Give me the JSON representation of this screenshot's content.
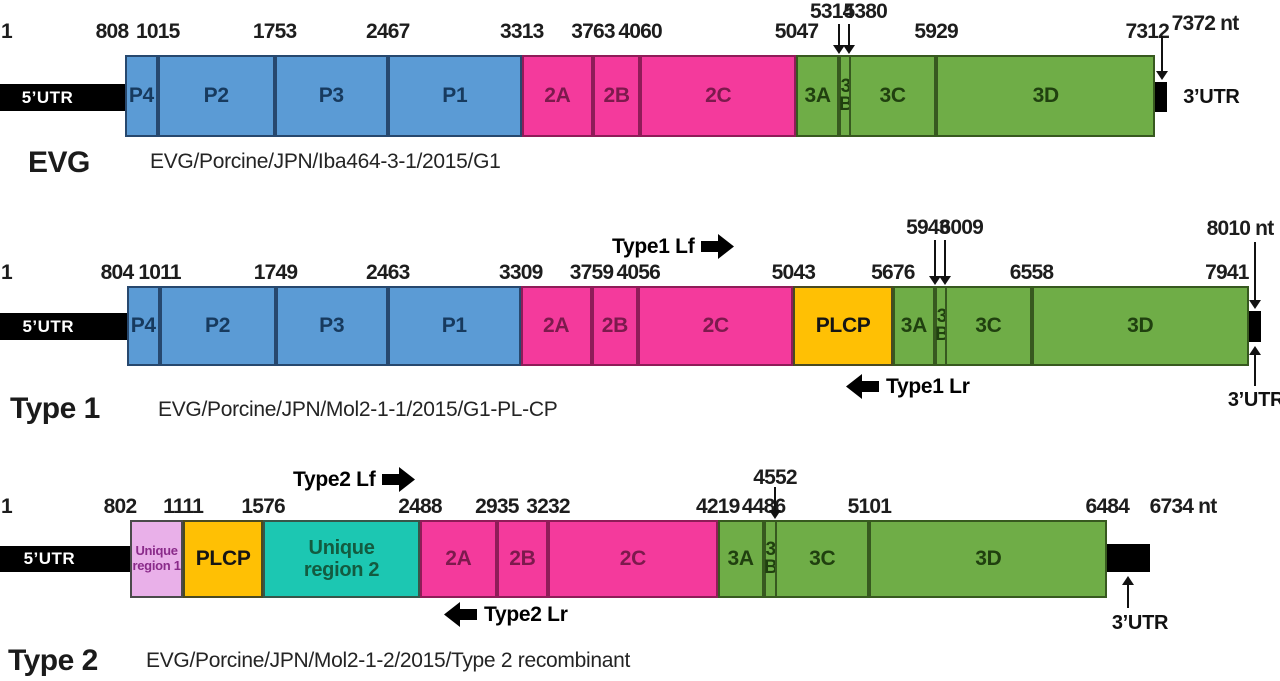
{
  "figure_type": "virus genome organization diagram",
  "palette": {
    "blue": "#5B9BD5",
    "pink": "#F43A9C",
    "green": "#6FAD47",
    "yellow": "#FFC004",
    "lavender": "#E9B0E9",
    "teal": "#1CC7B2",
    "utr_black": "#000000"
  },
  "rows": [
    {
      "name": "EVG",
      "strain": "EVG/Porcine/JPN/Iba464-3-1/2015/G1",
      "start_tick": "1",
      "utr5_label": "5’UTR",
      "utr3_label": "3’UTR",
      "end_label": "7372 nt",
      "ticks": [
        808,
        1015,
        1753,
        2467,
        3313,
        3763,
        4060,
        5047,
        5929,
        7312
      ],
      "pointer_ticks": [
        5314,
        5380
      ],
      "utr3_span": [
        7312,
        7372
      ],
      "segments": [
        {
          "label": "P4",
          "start": 808,
          "end": 1015,
          "color": "blue"
        },
        {
          "label": "P2",
          "start": 1015,
          "end": 1753,
          "color": "blue"
        },
        {
          "label": "P3",
          "start": 1753,
          "end": 2467,
          "color": "blue"
        },
        {
          "label": "P1",
          "start": 2467,
          "end": 3313,
          "color": "blue"
        },
        {
          "label": "2A",
          "start": 3313,
          "end": 3763,
          "color": "pink"
        },
        {
          "label": "2B",
          "start": 3763,
          "end": 4060,
          "color": "pink"
        },
        {
          "label": "2C",
          "start": 4060,
          "end": 5047,
          "color": "pink"
        },
        {
          "label": "3A",
          "start": 5047,
          "end": 5314,
          "color": "green"
        },
        {
          "label": "3B",
          "start": 5314,
          "end": 5380,
          "color": "green",
          "stacked": true
        },
        {
          "label": "3C",
          "start": 5380,
          "end": 5929,
          "color": "green"
        },
        {
          "label": "3D",
          "start": 5929,
          "end": 7312,
          "color": "green"
        }
      ],
      "primers": []
    },
    {
      "name": "Type 1",
      "strain": "EVG/Porcine/JPN/Mol2-1-1/2015/G1-PL-CP",
      "start_tick": "1",
      "utr5_label": "5’UTR",
      "utr3_label": "3’UTR",
      "end_label": "8010 nt",
      "ticks": [
        804,
        1011,
        1749,
        2463,
        3309,
        3759,
        4056,
        5043,
        5676,
        6558,
        7941
      ],
      "pointer_ticks": [
        5943,
        6009
      ],
      "utr3_span": [
        7941,
        8010
      ],
      "segments": [
        {
          "label": "P4",
          "start": 804,
          "end": 1011,
          "color": "blue"
        },
        {
          "label": "P2",
          "start": 1011,
          "end": 1749,
          "color": "blue"
        },
        {
          "label": "P3",
          "start": 1749,
          "end": 2463,
          "color": "blue"
        },
        {
          "label": "P1",
          "start": 2463,
          "end": 3309,
          "color": "blue"
        },
        {
          "label": "2A",
          "start": 3309,
          "end": 3759,
          "color": "pink"
        },
        {
          "label": "2B",
          "start": 3759,
          "end": 4056,
          "color": "pink"
        },
        {
          "label": "2C",
          "start": 4056,
          "end": 5043,
          "color": "pink"
        },
        {
          "label": "PLCP",
          "start": 5043,
          "end": 5676,
          "color": "yellow"
        },
        {
          "label": "3A",
          "start": 5676,
          "end": 5943,
          "color": "green"
        },
        {
          "label": "3B",
          "start": 5943,
          "end": 6009,
          "color": "green",
          "stacked": true
        },
        {
          "label": "3C",
          "start": 6009,
          "end": 6558,
          "color": "green"
        },
        {
          "label": "3D",
          "start": 6558,
          "end": 7941,
          "color": "green"
        }
      ],
      "primers": [
        {
          "label": "Type1 Lf",
          "direction": "right",
          "position": "above"
        },
        {
          "label": "Type1 Lr",
          "direction": "left",
          "position": "below"
        }
      ]
    },
    {
      "name": "Type 2",
      "strain": "EVG/Porcine/JPN/Mol2-1-2/2015/Type 2 recombinant",
      "start_tick": "1",
      "utr5_label": "5’UTR",
      "utr3_label": "3’UTR",
      "end_label": "6734 nt",
      "ticks": [
        802,
        1111,
        1576,
        2488,
        2935,
        3232,
        4219,
        4486,
        5101,
        6484
      ],
      "pointer_ticks": [
        4552
      ],
      "utr3_span": [
        6484,
        6734
      ],
      "segments": [
        {
          "label": "Unique region 1",
          "start": 802,
          "end": 1111,
          "color": "lavender",
          "twoLine": true
        },
        {
          "label": "PLCP",
          "start": 1111,
          "end": 1576,
          "color": "yellow"
        },
        {
          "label": "Unique region 2",
          "start": 1576,
          "end": 2488,
          "color": "teal",
          "twoLine": true
        },
        {
          "label": "2A",
          "start": 2488,
          "end": 2935,
          "color": "pink"
        },
        {
          "label": "2B",
          "start": 2935,
          "end": 3232,
          "color": "pink"
        },
        {
          "label": "2C",
          "start": 3232,
          "end": 4219,
          "color": "pink"
        },
        {
          "label": "3A",
          "start": 4219,
          "end": 4486,
          "color": "green"
        },
        {
          "label": "3B",
          "start": 4486,
          "end": 4552,
          "color": "green",
          "stacked": true
        },
        {
          "label": "3C",
          "start": 4552,
          "end": 5101,
          "color": "green"
        },
        {
          "label": "3D",
          "start": 5101,
          "end": 6484,
          "color": "green"
        }
      ],
      "primers": [
        {
          "label": "Type2 Lf",
          "direction": "right",
          "position": "above"
        },
        {
          "label": "Type2 Lr",
          "direction": "left",
          "position": "below"
        }
      ]
    }
  ]
}
